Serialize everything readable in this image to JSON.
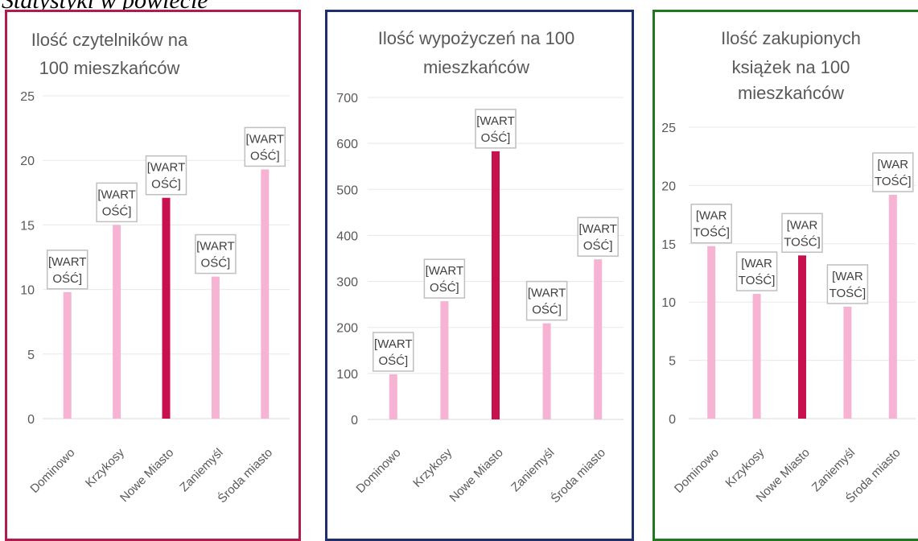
{
  "page_heading": "Statystyki w powiecie",
  "chart_data": [
    {
      "type": "bar",
      "title_lines": [
        "Ilość czytelników na",
        "100 mieszkańców"
      ],
      "categories": [
        "Dominowo",
        "Krzykosy",
        "Nowe Miasto",
        "Zaniemyśl",
        "Środa miasto"
      ],
      "values": [
        9.8,
        15.0,
        17.1,
        11.0,
        19.3
      ],
      "highlight_index": 2,
      "data_label_lines": [
        "[WART",
        "OŚĆ]"
      ],
      "ylim": [
        0,
        25
      ],
      "yticks": [
        0,
        5,
        10,
        15,
        20,
        25
      ],
      "grid": true,
      "colors": {
        "bar": "#f7b3d3",
        "highlight": "#c8104e",
        "border": "#b01c4c"
      }
    },
    {
      "type": "bar",
      "title_lines": [
        "Ilość wypożyczeń na 100",
        "mieszkańców"
      ],
      "categories": [
        "Dominowo",
        "Krzykosy",
        "Nowe Miasto",
        "Zaniemyśl",
        "Środa miasto"
      ],
      "values": [
        98,
        257,
        583,
        209,
        348
      ],
      "highlight_index": 2,
      "data_label_lines": [
        "[WART",
        "OŚĆ]"
      ],
      "ylim": [
        0,
        700
      ],
      "yticks": [
        0,
        100,
        200,
        300,
        400,
        500,
        600,
        700
      ],
      "grid": true,
      "colors": {
        "bar": "#f7b3d3",
        "highlight": "#c8104e",
        "border": "#1f2f6b"
      }
    },
    {
      "type": "bar",
      "title_lines": [
        "Ilość zakupionych",
        "książek na 100",
        "mieszkańców"
      ],
      "categories": [
        "Dominowo",
        "Krzykosy",
        "Nowe Miasto",
        "Zaniemyśl",
        "Środa miasto"
      ],
      "values": [
        14.8,
        10.7,
        14.0,
        9.6,
        19.2
      ],
      "highlight_index": 2,
      "data_label_lines": [
        "[WAR",
        "TOŚĆ]"
      ],
      "ylim": [
        0,
        25
      ],
      "yticks": [
        0,
        5,
        10,
        15,
        20,
        25
      ],
      "grid": true,
      "colors": {
        "bar": "#f7b3d3",
        "highlight": "#c8104e",
        "border": "#1f7a1f"
      }
    }
  ]
}
